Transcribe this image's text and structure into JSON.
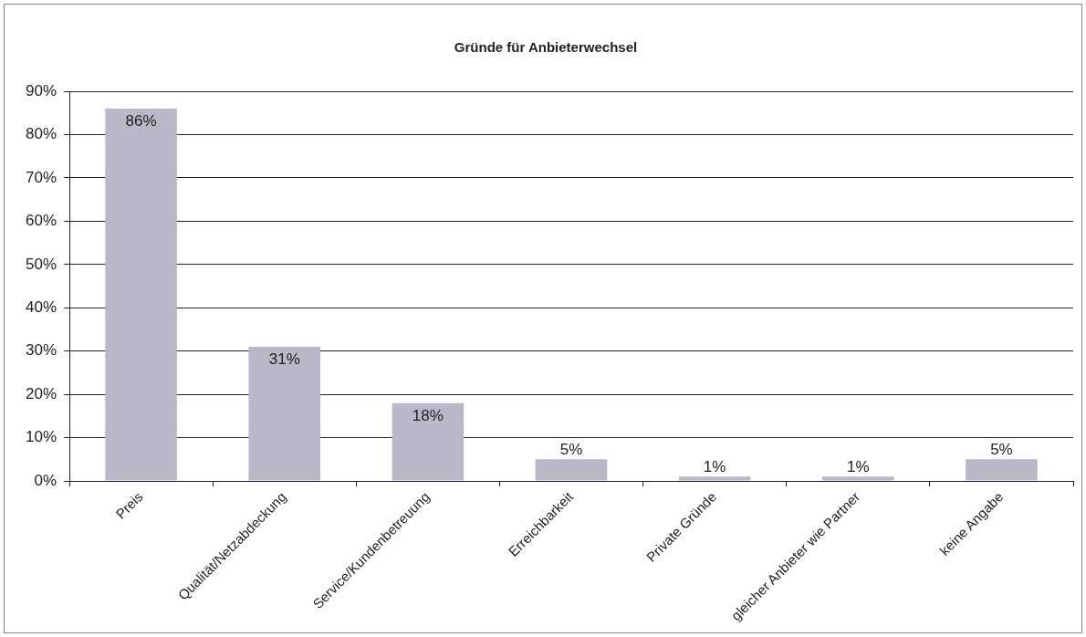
{
  "chart_data": {
    "type": "bar",
    "title": "Gründe für Anbieterwechsel",
    "categories": [
      "Preis",
      "Qualität/Netzabdeckung",
      "Service/Kundenbetreuung",
      "Erreichbarkeit",
      "Private Gründe",
      "gleicher Anbieter wie Partner",
      "keine Angabe"
    ],
    "values": [
      86,
      31,
      18,
      5,
      1,
      1,
      5
    ],
    "value_labels": [
      "86%",
      "31%",
      "18%",
      "5%",
      "1%",
      "1%",
      "5%"
    ],
    "color": "#b8b8c8",
    "ylim": [
      0,
      90
    ],
    "yticks": [
      {
        "value": 0,
        "label": "0%"
      },
      {
        "value": 10,
        "label": "10%"
      },
      {
        "value": 20,
        "label": "20%"
      },
      {
        "value": 30,
        "label": "30%"
      },
      {
        "value": 40,
        "label": "40%"
      },
      {
        "value": 50,
        "label": "50%"
      },
      {
        "value": 60,
        "label": "60%"
      },
      {
        "value": 70,
        "label": "70%"
      },
      {
        "value": 80,
        "label": "80%"
      },
      {
        "value": 90,
        "label": "90%"
      }
    ],
    "grid": "y",
    "legend": false
  }
}
